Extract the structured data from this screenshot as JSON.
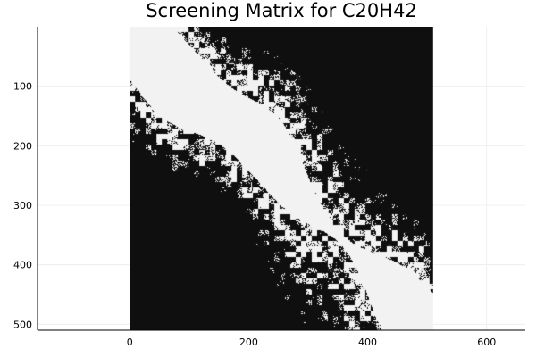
{
  "chart_data": {
    "type": "heatmap",
    "title": "Screening Matrix for C20H42",
    "xlabel": "",
    "ylabel": "",
    "matrix_size": 510,
    "xlim": [
      -155,
      665
    ],
    "ylim": [
      0,
      510
    ],
    "y_inverted": true,
    "x_ticks": [
      0,
      200,
      400,
      600
    ],
    "y_ticks": [
      100,
      200,
      300,
      400,
      500
    ],
    "grid": true,
    "legend": "none",
    "colors": {
      "band": "#f2f2f2",
      "screened": "#0f0f0f",
      "background": "#ffffff",
      "grid": "#ececec",
      "axis": "#000000"
    }
  }
}
